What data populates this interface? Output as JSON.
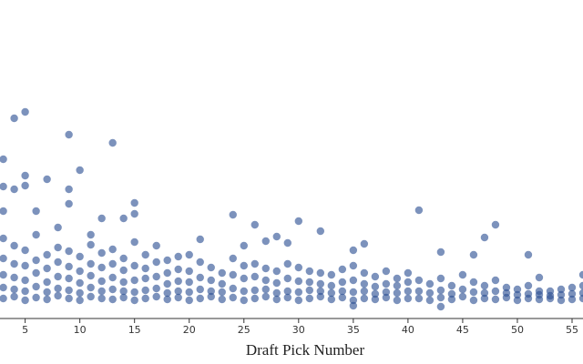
{
  "chart_data": {
    "type": "scatter",
    "x_label": "Draft Pick Number",
    "color": "#2b4f93",
    "xlim": [
      2.7,
      56
    ],
    "xticks": [
      5,
      10,
      15,
      20,
      25,
      30,
      35,
      40,
      45,
      50,
      55
    ],
    "ylim": [
      0,
      350
    ],
    "x": [
      3,
      3,
      3,
      3,
      3,
      4,
      4,
      4,
      4,
      4,
      5,
      5,
      5,
      5,
      5,
      6,
      6,
      6,
      6,
      6,
      7,
      7,
      7,
      7,
      7,
      8,
      8,
      8,
      8,
      8,
      9,
      9,
      9,
      9,
      9,
      10,
      10,
      10,
      10,
      10,
      11,
      11,
      11,
      11,
      11,
      12,
      12,
      12,
      12,
      12,
      13,
      13,
      13,
      13,
      13,
      14,
      14,
      14,
      14,
      14,
      15,
      15,
      15,
      15,
      15,
      16,
      16,
      16,
      16,
      16,
      17,
      17,
      17,
      17,
      17,
      18,
      18,
      18,
      18,
      18,
      19,
      19,
      19,
      19,
      19,
      20,
      20,
      20,
      20,
      20,
      21,
      21,
      21,
      21,
      22,
      22,
      22,
      22,
      23,
      23,
      23,
      23,
      24,
      24,
      24,
      24,
      25,
      25,
      25,
      25,
      26,
      26,
      26,
      26,
      27,
      27,
      27,
      27,
      28,
      28,
      28,
      28,
      29,
      29,
      29,
      29,
      30,
      30,
      30,
      30,
      31,
      31,
      31,
      31,
      32,
      32,
      32,
      32,
      33,
      33,
      33,
      33,
      34,
      34,
      34,
      34,
      35,
      35,
      35,
      35,
      36,
      36,
      36,
      36,
      37,
      37,
      37,
      37,
      38,
      38,
      38,
      38,
      39,
      39,
      39,
      39,
      40,
      40,
      40,
      40,
      41,
      41,
      41,
      42,
      42,
      42,
      43,
      43,
      43,
      44,
      44,
      44,
      45,
      45,
      45,
      46,
      46,
      46,
      47,
      47,
      47,
      48,
      48,
      48,
      49,
      49,
      49,
      50,
      50,
      50,
      51,
      51,
      51,
      52,
      52,
      52,
      53,
      53,
      53,
      54,
      54,
      54,
      55,
      55,
      55,
      56,
      56,
      56,
      3,
      4,
      5,
      9,
      13,
      3,
      5,
      5,
      7,
      10,
      9,
      9,
      15,
      14,
      15,
      24,
      26,
      30,
      41,
      48,
      47,
      32,
      28,
      27,
      29,
      35,
      36,
      43,
      46,
      51,
      12,
      6,
      4,
      3,
      11,
      8,
      21,
      25,
      56,
      52,
      43,
      35
    ],
    "y": [
      22,
      34,
      48,
      66,
      88,
      24,
      32,
      45,
      60,
      80,
      20,
      30,
      42,
      58,
      75,
      23,
      35,
      50,
      64,
      92,
      21,
      29,
      40,
      55,
      70,
      25,
      33,
      46,
      62,
      78,
      22,
      31,
      44,
      57,
      74,
      20,
      28,
      39,
      52,
      68,
      24,
      34,
      47,
      60,
      81,
      22,
      30,
      41,
      56,
      72,
      21,
      32,
      45,
      60,
      76,
      23,
      30,
      40,
      53,
      66,
      20,
      29,
      42,
      58,
      84,
      22,
      31,
      44,
      55,
      70,
      24,
      33,
      46,
      62,
      80,
      21,
      28,
      38,
      50,
      64,
      23,
      30,
      41,
      54,
      68,
      20,
      29,
      40,
      52,
      70,
      22,
      32,
      45,
      62,
      24,
      30,
      42,
      56,
      21,
      29,
      38,
      50,
      23,
      33,
      48,
      66,
      20,
      30,
      44,
      58,
      22,
      31,
      46,
      60,
      24,
      32,
      42,
      55,
      21,
      28,
      39,
      52,
      23,
      30,
      44,
      60,
      20,
      29,
      41,
      56,
      22,
      31,
      40,
      52,
      24,
      30,
      38,
      50,
      21,
      28,
      36,
      48,
      23,
      30,
      40,
      54,
      20,
      29,
      42,
      58,
      22,
      30,
      38,
      50,
      21,
      27,
      35,
      46,
      23,
      29,
      38,
      52,
      20,
      28,
      36,
      44,
      22,
      30,
      40,
      50,
      22,
      30,
      42,
      20,
      28,
      38,
      23,
      31,
      44,
      21,
      27,
      36,
      24,
      32,
      48,
      20,
      29,
      40,
      22,
      28,
      36,
      21,
      30,
      42,
      23,
      28,
      34,
      20,
      26,
      32,
      22,
      27,
      36,
      21,
      26,
      30,
      22,
      25,
      30,
      20,
      26,
      32,
      21,
      27,
      34,
      22,
      28,
      36,
      175,
      220,
      227,
      202,
      193,
      145,
      157,
      146,
      153,
      163,
      142,
      126,
      127,
      110,
      115,
      114,
      103,
      107,
      119,
      103,
      89,
      96,
      90,
      85,
      83,
      75,
      82,
      73,
      70,
      70,
      110,
      118,
      142,
      118,
      92,
      100,
      87,
      80,
      48,
      45,
      13,
      14
    ]
  }
}
